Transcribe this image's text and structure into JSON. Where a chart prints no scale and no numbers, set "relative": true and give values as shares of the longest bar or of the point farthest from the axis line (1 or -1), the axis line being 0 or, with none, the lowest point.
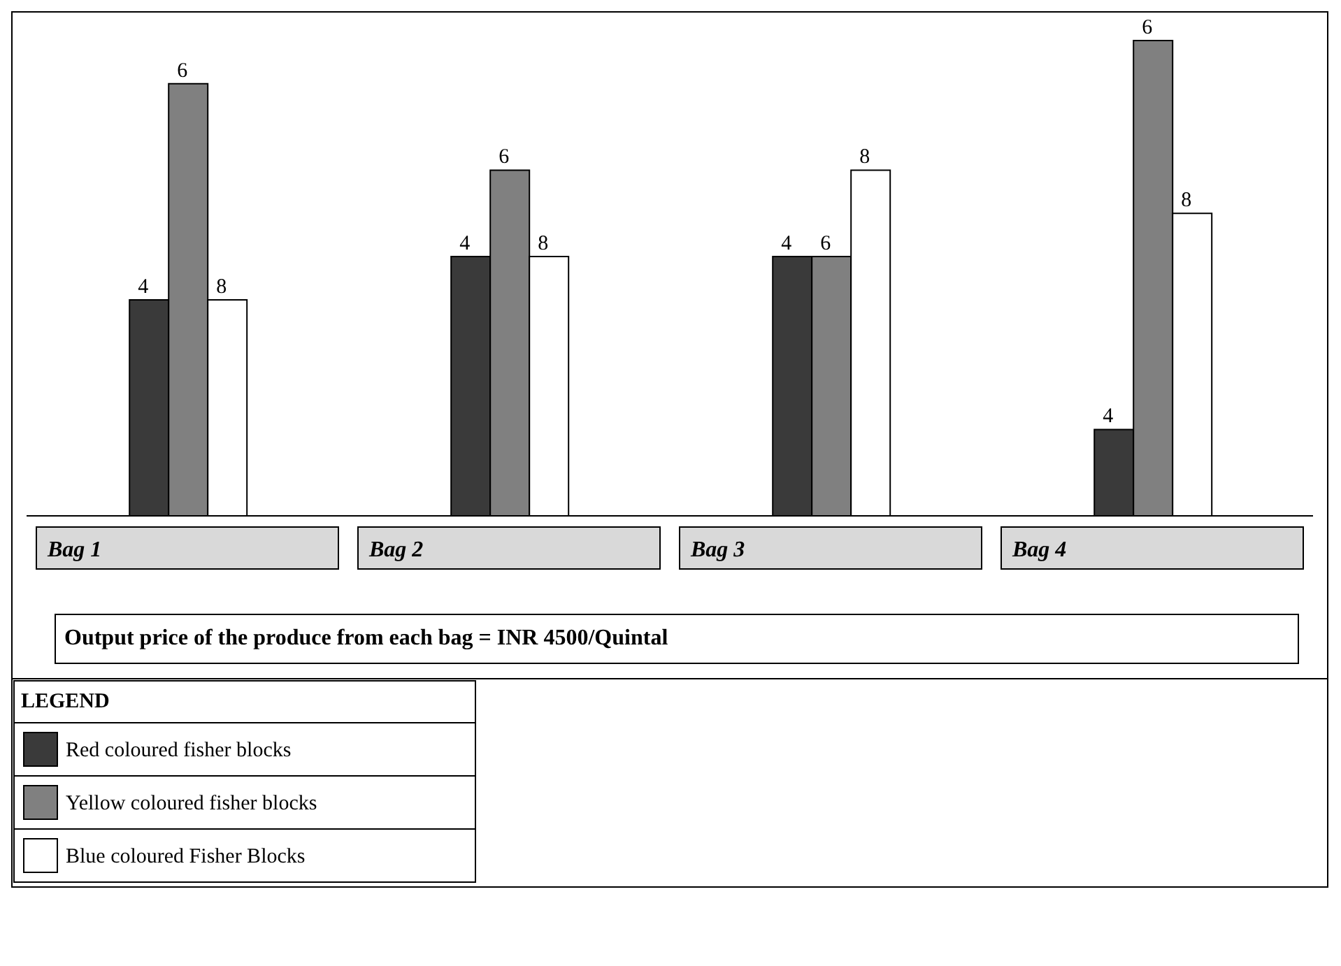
{
  "chart_data": {
    "type": "bar",
    "relative": true,
    "categories": [
      "Bag 1",
      "Bag 2",
      "Bag 3",
      "Bag 4"
    ],
    "series": [
      {
        "name": "Red coloured fisher blocks",
        "color": "#3a3a3a",
        "values": [
          0.4545,
          0.5455,
          0.5455,
          0.1818
        ]
      },
      {
        "name": "Yellow coloured fisher blocks",
        "color": "#808080",
        "values": [
          0.9091,
          0.7273,
          0.5455,
          1
        ]
      },
      {
        "name": "Blue coloured Fisher Blocks",
        "color": "#ffffff",
        "values": [
          0.4545,
          0.5455,
          0.7273,
          0.6364
        ]
      }
    ],
    "legend": "bottom left",
    "legend_title": "LEGEND",
    "annotations": [
      "4",
      "6",
      "8",
      "4",
      "6",
      "8",
      "4",
      "6",
      "8",
      "4",
      "6",
      "8",
      "Output price of the produce from each bag = INR 4500/Quintal"
    ]
  }
}
